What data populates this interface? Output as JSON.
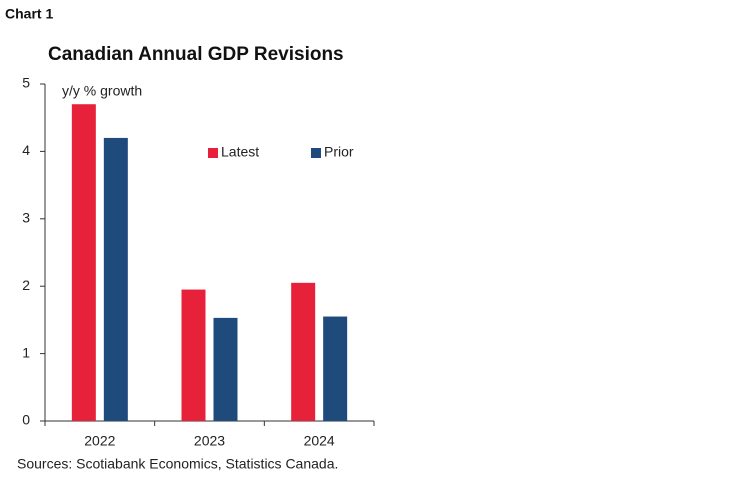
{
  "chart_data": {
    "type": "bar",
    "chart_label": "Chart 1",
    "title": "Canadian Annual GDP Revisions",
    "ylabel": "y/y % growth",
    "source": "Sources: Scotiabank Economics, Statistics Canada.",
    "categories": [
      "2022",
      "2023",
      "2024"
    ],
    "series": [
      {
        "name": "Latest",
        "color": "#e8213a",
        "values": [
          4.7,
          1.95,
          2.05
        ]
      },
      {
        "name": "Prior",
        "color": "#1f4a7c",
        "values": [
          4.2,
          1.53,
          1.55
        ]
      }
    ],
    "ylim": [
      0,
      5
    ],
    "yticks": [
      0,
      1,
      2,
      3,
      4,
      5
    ],
    "grid": false,
    "legend": "top-right"
  }
}
